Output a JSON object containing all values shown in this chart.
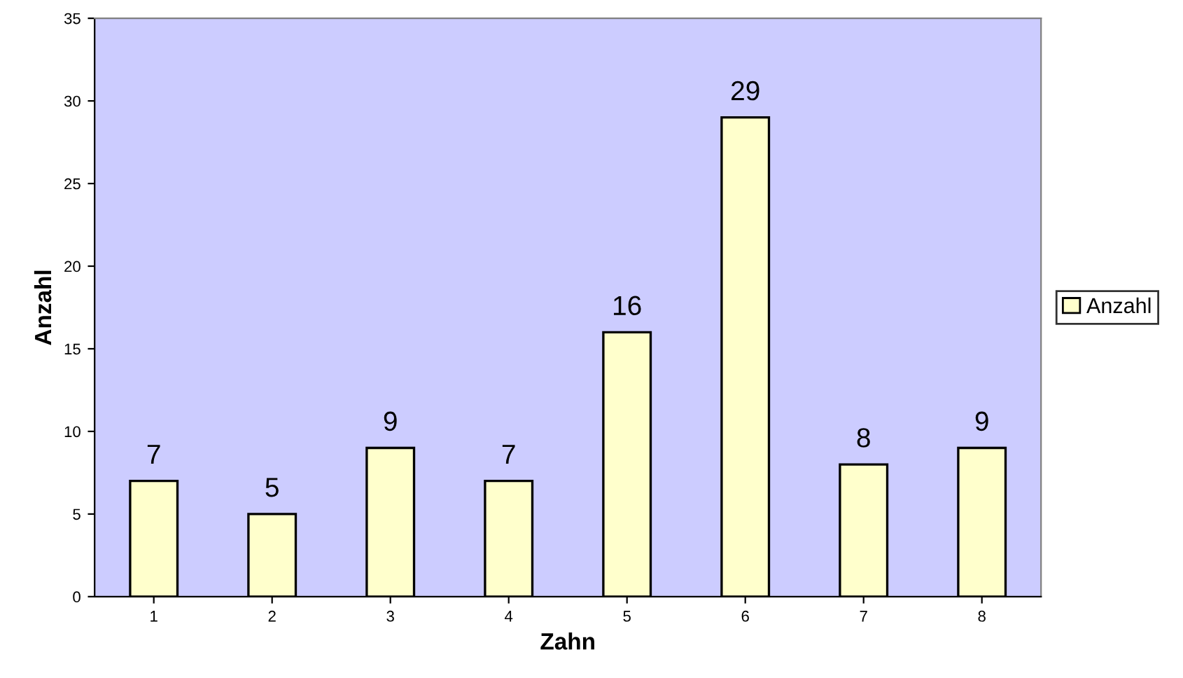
{
  "chart_data": {
    "type": "bar",
    "xlabel": "Zahn",
    "ylabel": "Anzahl",
    "categories": [
      "1",
      "2",
      "3",
      "4",
      "5",
      "6",
      "7",
      "8"
    ],
    "series": [
      {
        "name": "Anzahl",
        "color": "#ffffcc",
        "values": [
          7,
          5,
          9,
          7,
          16,
          29,
          8,
          9
        ]
      }
    ],
    "ylim": [
      0,
      35
    ],
    "yticks": [
      0,
      5,
      10,
      15,
      20,
      25,
      30,
      35
    ],
    "grid": false,
    "legend": "right",
    "data_labels": true
  }
}
